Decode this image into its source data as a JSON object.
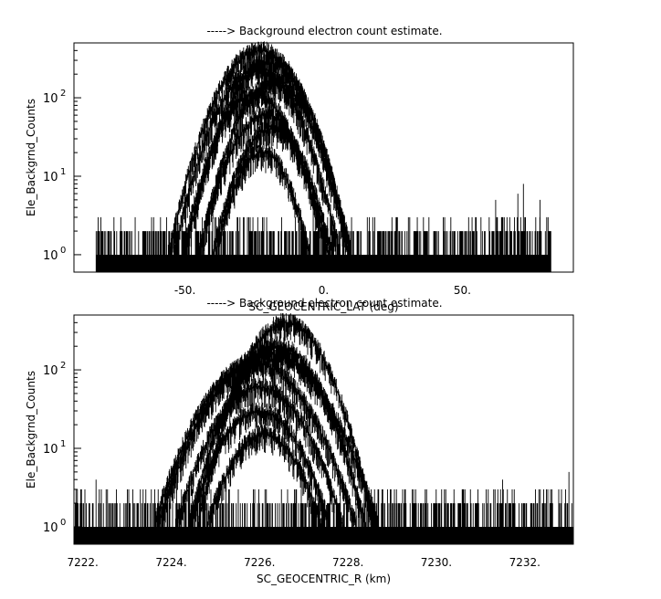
{
  "chart_data": [
    {
      "type": "scatter",
      "title": "-----> Background electron count estimate.",
      "xlabel": "SC_GEOCENTRIC_LAT (deg)",
      "ylabel": "Ele_Backgrnd_Counts",
      "xlim": [
        -90,
        90
      ],
      "ylim": [
        0.6,
        500
      ],
      "y_scale": "log",
      "grid": false,
      "x_ticks": [
        {
          "value": -50,
          "label": "-50."
        },
        {
          "value": 0,
          "label": "0."
        },
        {
          "value": 50,
          "label": "50."
        }
      ],
      "y_ticks": [
        {
          "value": 1,
          "label": "10",
          "exp": "0"
        },
        {
          "value": 10,
          "label": "10",
          "exp": "1"
        },
        {
          "value": 100,
          "label": "10",
          "exp": "2"
        }
      ],
      "data_range_x": [
        -82,
        82
      ],
      "noise_floor_max": 3,
      "noise_spikes": [
        {
          "x": 62,
          "y": 5
        },
        {
          "x": 70,
          "y": 6
        },
        {
          "x": 72,
          "y": 8
        },
        {
          "x": 78,
          "y": 5
        }
      ],
      "series": [
        {
          "peak_x": -23,
          "peak_y": 400,
          "half_width": 33
        },
        {
          "peak_x": -20,
          "peak_y": 280,
          "half_width": 30
        },
        {
          "peak_x": -24,
          "peak_y": 230,
          "half_width": 30
        },
        {
          "peak_x": -18,
          "peak_y": 160,
          "half_width": 27
        },
        {
          "peak_x": -25,
          "peak_y": 110,
          "half_width": 26
        },
        {
          "peak_x": -21,
          "peak_y": 60,
          "half_width": 24
        },
        {
          "peak_x": -19,
          "peak_y": 40,
          "half_width": 21
        },
        {
          "peak_x": -22,
          "peak_y": 20,
          "half_width": 17
        }
      ]
    },
    {
      "type": "scatter",
      "title": "-----> Background electron count estimate.",
      "xlabel": "SC_GEOCENTRIC_R (km)",
      "ylabel": "Ele_Backgrnd_Counts",
      "xlim": [
        7221.8,
        7233.1
      ],
      "ylim": [
        0.6,
        500
      ],
      "y_scale": "log",
      "grid": false,
      "x_ticks": [
        {
          "value": 7222,
          "label": "7222."
        },
        {
          "value": 7224,
          "label": "7224."
        },
        {
          "value": 7226,
          "label": "7226."
        },
        {
          "value": 7228,
          "label": "7228."
        },
        {
          "value": 7230,
          "label": "7230."
        },
        {
          "value": 7232,
          "label": "7232."
        }
      ],
      "y_ticks": [
        {
          "value": 1,
          "label": "10",
          "exp": "0"
        },
        {
          "value": 10,
          "label": "10",
          "exp": "1"
        },
        {
          "value": 100,
          "label": "10",
          "exp": "2"
        }
      ],
      "data_range_x": [
        7221.8,
        7233.1
      ],
      "noise_floor_max": 3,
      "noise_spikes": [
        {
          "x": 7222.3,
          "y": 4
        },
        {
          "x": 7231.5,
          "y": 4
        },
        {
          "x": 7233.0,
          "y": 5
        }
      ],
      "series": [
        {
          "peak_x": 7226.6,
          "peak_y": 400,
          "half_width": 2.0
        },
        {
          "peak_x": 7226.4,
          "peak_y": 200,
          "half_width": 2.0
        },
        {
          "peak_x": 7226.2,
          "peak_y": 160,
          "half_width": 2.5
        },
        {
          "peak_x": 7225.9,
          "peak_y": 120,
          "half_width": 2.3
        },
        {
          "peak_x": 7226.0,
          "peak_y": 60,
          "half_width": 1.9
        },
        {
          "peak_x": 7226.0,
          "peak_y": 30,
          "half_width": 1.6
        },
        {
          "peak_x": 7226.1,
          "peak_y": 15,
          "half_width": 1.3
        }
      ]
    }
  ]
}
